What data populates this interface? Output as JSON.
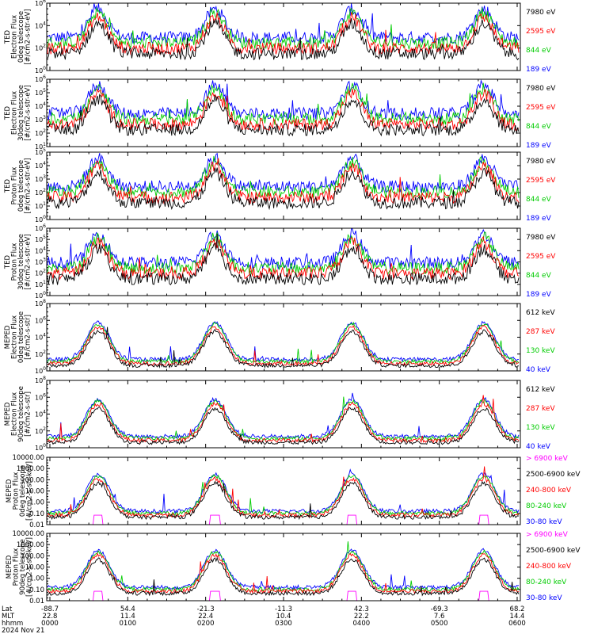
{
  "chart_data": {
    "type": "line",
    "panels": [
      {
        "id": "ted-electron-0deg",
        "ylabel_lines": [
          "TED",
          "Electron Flux",
          "0deg telescope",
          "[#/cm2-s-str-eV]"
        ],
        "yscale": "log",
        "ylim": [
          1.0,
          1000000.0
        ],
        "yticks": [
          "10^0",
          "10^2",
          "10^4",
          "10^6"
        ],
        "series": [
          {
            "name": "7980 eV",
            "color": "#000000"
          },
          {
            "name": "2595 eV",
            "color": "#ff0000"
          },
          {
            "name": "844 eV",
            "color": "#00cc00"
          },
          {
            "name": "189 eV",
            "color": "#0000ff"
          }
        ]
      },
      {
        "id": "ted-electron-30deg",
        "ylabel_lines": [
          "TED",
          "Electron Flux",
          "30deg telescope",
          "[#/cm2-s-str-eV]"
        ],
        "yscale": "log",
        "ylim": [
          10.0,
          1000000.0
        ],
        "yticks": [
          "10^1",
          "10^2",
          "10^3",
          "10^4",
          "10^5",
          "10^6"
        ],
        "series": [
          {
            "name": "7980 eV",
            "color": "#000000"
          },
          {
            "name": "2595 eV",
            "color": "#ff0000"
          },
          {
            "name": "844 eV",
            "color": "#00cc00"
          },
          {
            "name": "189 eV",
            "color": "#0000ff"
          }
        ]
      },
      {
        "id": "ted-proton-0deg",
        "ylabel_lines": [
          "TED",
          "Proton Flux",
          "0deg telescope",
          "[#/cm2-s-str-eV]"
        ],
        "yscale": "log",
        "ylim": [
          1.0,
          100000.0
        ],
        "yticks": [
          "10^0",
          "10^1",
          "10^2",
          "10^3",
          "10^4",
          "10^5"
        ],
        "series": [
          {
            "name": "7980 eV",
            "color": "#000000"
          },
          {
            "name": "2595 eV",
            "color": "#ff0000"
          },
          {
            "name": "844 eV",
            "color": "#00cc00"
          },
          {
            "name": "189 eV",
            "color": "#0000ff"
          }
        ]
      },
      {
        "id": "ted-proton-30deg",
        "ylabel_lines": [
          "TED",
          "Proton Flux",
          "30deg telescope",
          "[#/cm2-s-str-eV]"
        ],
        "yscale": "log",
        "ylim": [
          1.0,
          1000000.0
        ],
        "yticks": [
          "10^0",
          "10^1",
          "10^2",
          "10^3",
          "10^4",
          "10^5",
          "10^6"
        ],
        "series": [
          {
            "name": "7980 eV",
            "color": "#000000"
          },
          {
            "name": "2595 eV",
            "color": "#ff0000"
          },
          {
            "name": "844 eV",
            "color": "#00cc00"
          },
          {
            "name": "189 eV",
            "color": "#0000ff"
          }
        ]
      },
      {
        "id": "meped-electron-0deg",
        "ylabel_lines": [
          "MEPED",
          "Electron Flux",
          "0deg telescope",
          "[#/cm2-s-str]"
        ],
        "yscale": "log",
        "ylim": [
          1.0,
          100000000.0
        ],
        "yticks": [
          "10^0",
          "10^2",
          "10^4",
          "10^6",
          "10^8"
        ],
        "series": [
          {
            "name": "612 keV",
            "color": "#000000"
          },
          {
            "name": "287 keV",
            "color": "#ff0000"
          },
          {
            "name": "130 keV",
            "color": "#00cc00"
          },
          {
            "name": "40 keV",
            "color": "#0000ff"
          }
        ]
      },
      {
        "id": "meped-electron-90deg",
        "ylabel_lines": [
          "MEPED",
          "Electron Flux",
          "90deg telescope",
          "[#/cm2-s-str]"
        ],
        "yscale": "log",
        "ylim": [
          1.0,
          100000000.0
        ],
        "yticks": [
          "10^0",
          "10^2",
          "10^4",
          "10^6",
          "10^8"
        ],
        "series": [
          {
            "name": "612 keV",
            "color": "#000000"
          },
          {
            "name": "287 keV",
            "color": "#ff0000"
          },
          {
            "name": "130 keV",
            "color": "#00cc00"
          },
          {
            "name": "40 keV",
            "color": "#0000ff"
          }
        ]
      },
      {
        "id": "meped-proton-0deg",
        "ylabel_lines": [
          "MEPED",
          "Proton Flux",
          "0deg telescope",
          "[#/cm2-s-str-keV]"
        ],
        "yscale": "log",
        "ylim": [
          0.01,
          10000
        ],
        "yticks": [
          "0.01",
          "0.10",
          "1.00",
          "10.00",
          "100.00",
          "1000.00",
          "10000.00"
        ],
        "series": [
          {
            "name": "> 6900 keV",
            "color": "#ff00ff"
          },
          {
            "name": "2500-6900 keV",
            "color": "#000000"
          },
          {
            "name": "240-800 keV",
            "color": "#ff0000"
          },
          {
            "name": "80-240 keV",
            "color": "#00cc00"
          },
          {
            "name": "30-80 keV",
            "color": "#0000ff"
          }
        ]
      },
      {
        "id": "meped-proton-90deg",
        "ylabel_lines": [
          "MEPED",
          "Proton Flux",
          "90deg telescope",
          "[#/cm2-s-str-keV]"
        ],
        "yscale": "log",
        "ylim": [
          0.01,
          10000
        ],
        "yticks": [
          "0.01",
          "0.10",
          "1.00",
          "10.00",
          "100.00",
          "1000.00",
          "10000.00"
        ],
        "series": [
          {
            "name": "> 6900 keV",
            "color": "#ff00ff"
          },
          {
            "name": "2500-6900 keV",
            "color": "#000000"
          },
          {
            "name": "240-800 keV",
            "color": "#ff0000"
          },
          {
            "name": "80-240 keV",
            "color": "#00cc00"
          },
          {
            "name": "30-80 keV",
            "color": "#0000ff"
          }
        ]
      }
    ],
    "x_axis": {
      "row_labels": [
        "Lat",
        "MLT",
        "hhmm"
      ],
      "date_label": "2024 Nov 21",
      "ticks": [
        {
          "lat": "-88.7",
          "mlt": "22.8",
          "hhmm": "0000"
        },
        {
          "lat": "54.4",
          "mlt": "11.4",
          "hhmm": "0100"
        },
        {
          "lat": "-21.3",
          "mlt": "22.4",
          "hhmm": "0200"
        },
        {
          "lat": "-11.3",
          "mlt": "10.4",
          "hhmm": "0300"
        },
        {
          "lat": "42.3",
          "mlt": "22.2",
          "hhmm": "0400"
        },
        {
          "lat": "-69.3",
          "mlt": "7.6",
          "hhmm": "0500"
        },
        {
          "lat": "68.2",
          "mlt": "14.4",
          "hhmm": "0600"
        }
      ],
      "time_range_hours": [
        0,
        6
      ]
    },
    "features": {
      "main_peaks_hours": [
        0.62,
        2.12,
        3.88,
        5.57
      ],
      "grid": false,
      "legend_placement": "right"
    }
  }
}
